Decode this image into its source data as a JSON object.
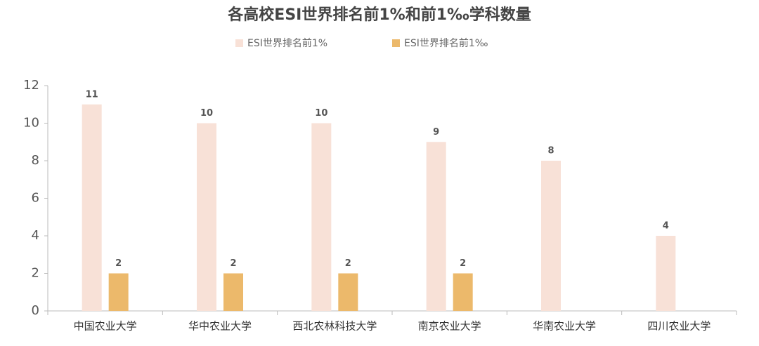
{
  "chart_data": {
    "type": "bar",
    "title": "各高校ESI世界排名前1%和前1‰学科数量",
    "categories": [
      "中国农业大学",
      "华中农业大学",
      "西北农林科技大学",
      "南京农业大学",
      "华南农业大学",
      "四川农业大学"
    ],
    "series": [
      {
        "name": "ESI世界排名前1%",
        "color": "#f8e1d7",
        "values": [
          11,
          10,
          10,
          9,
          8,
          4
        ]
      },
      {
        "name": "ESI世界排名前1‰",
        "color": "#ecb96b",
        "values": [
          2,
          2,
          2,
          2,
          null,
          null
        ]
      }
    ],
    "ylim": [
      0,
      12
    ],
    "yticks": [
      0,
      2,
      4,
      6,
      8,
      10,
      12
    ],
    "grid": false,
    "legend": "top"
  }
}
